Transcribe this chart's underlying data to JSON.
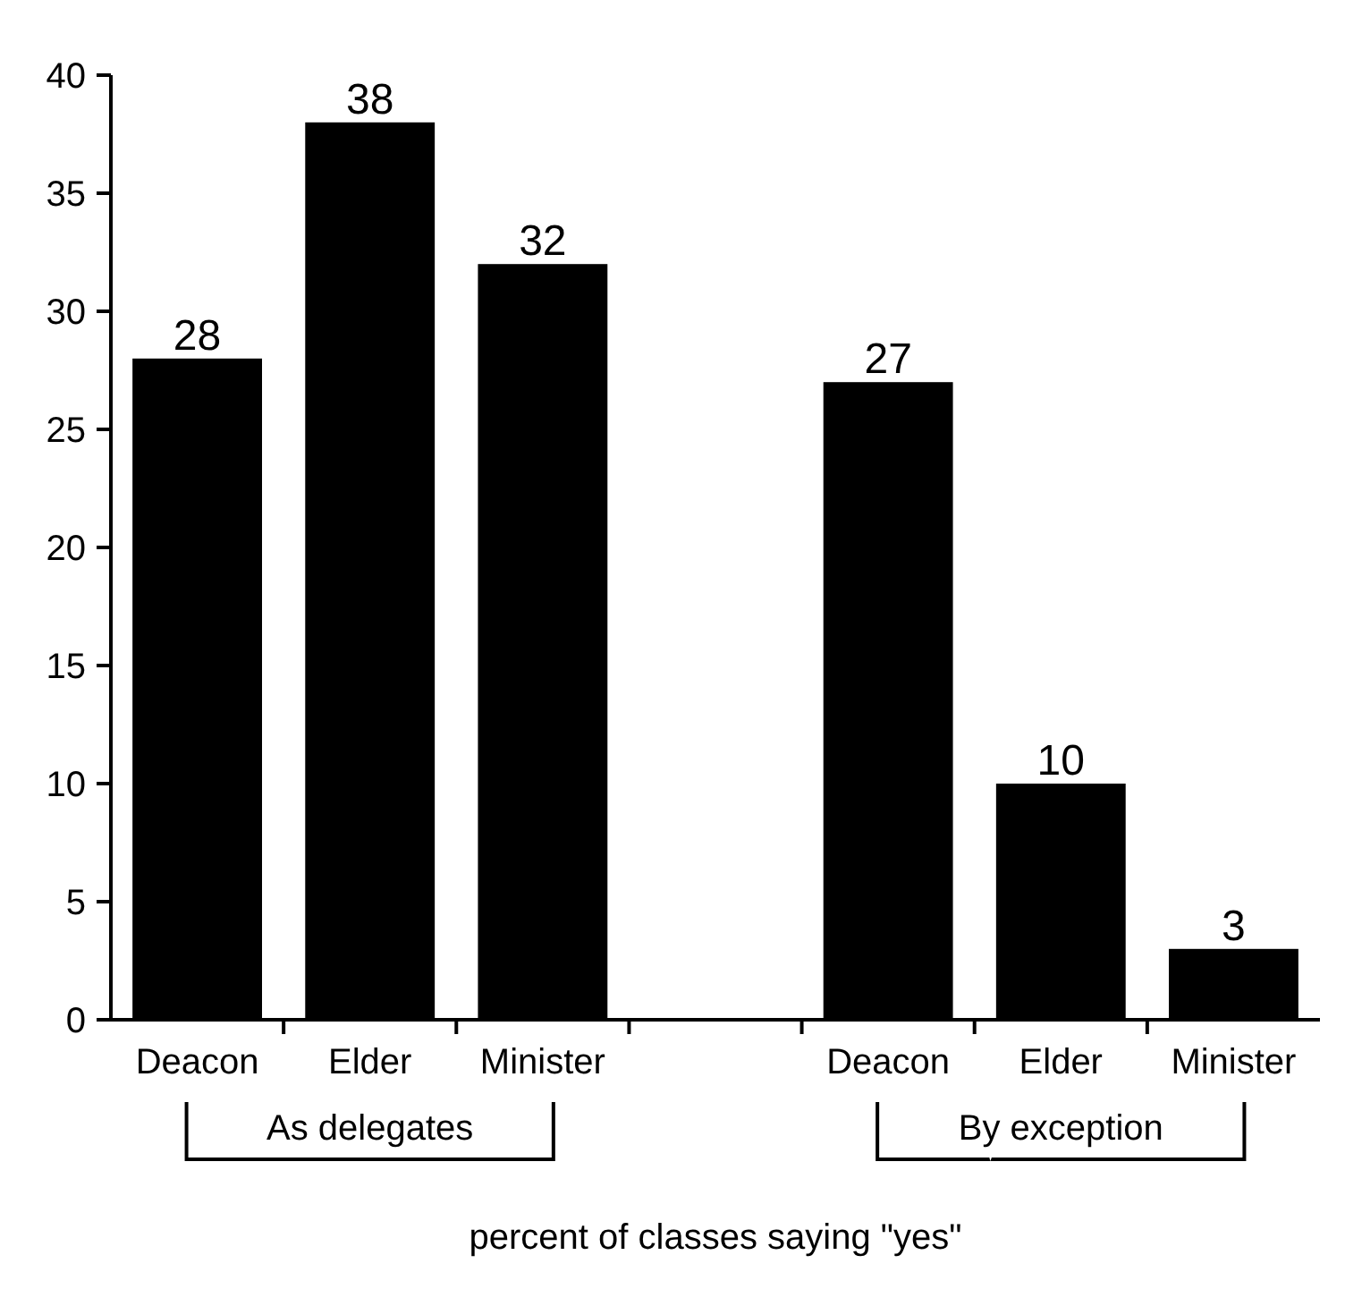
{
  "chart_data": {
    "type": "bar",
    "xlabel": "percent of classes saying \"yes\"",
    "categories": [
      "Deacon",
      "Elder",
      "Minister",
      null,
      "Deacon",
      "Elder",
      "Minister"
    ],
    "values": [
      28,
      38,
      32,
      null,
      27,
      10,
      3
    ],
    "color": "#000000",
    "ylim": [
      0,
      40
    ],
    "yticks": [
      0,
      5,
      10,
      15,
      20,
      25,
      30,
      35,
      40
    ],
    "data_labels": true,
    "grid": false,
    "annotations": [
      "As delegates",
      "By exception"
    ]
  }
}
